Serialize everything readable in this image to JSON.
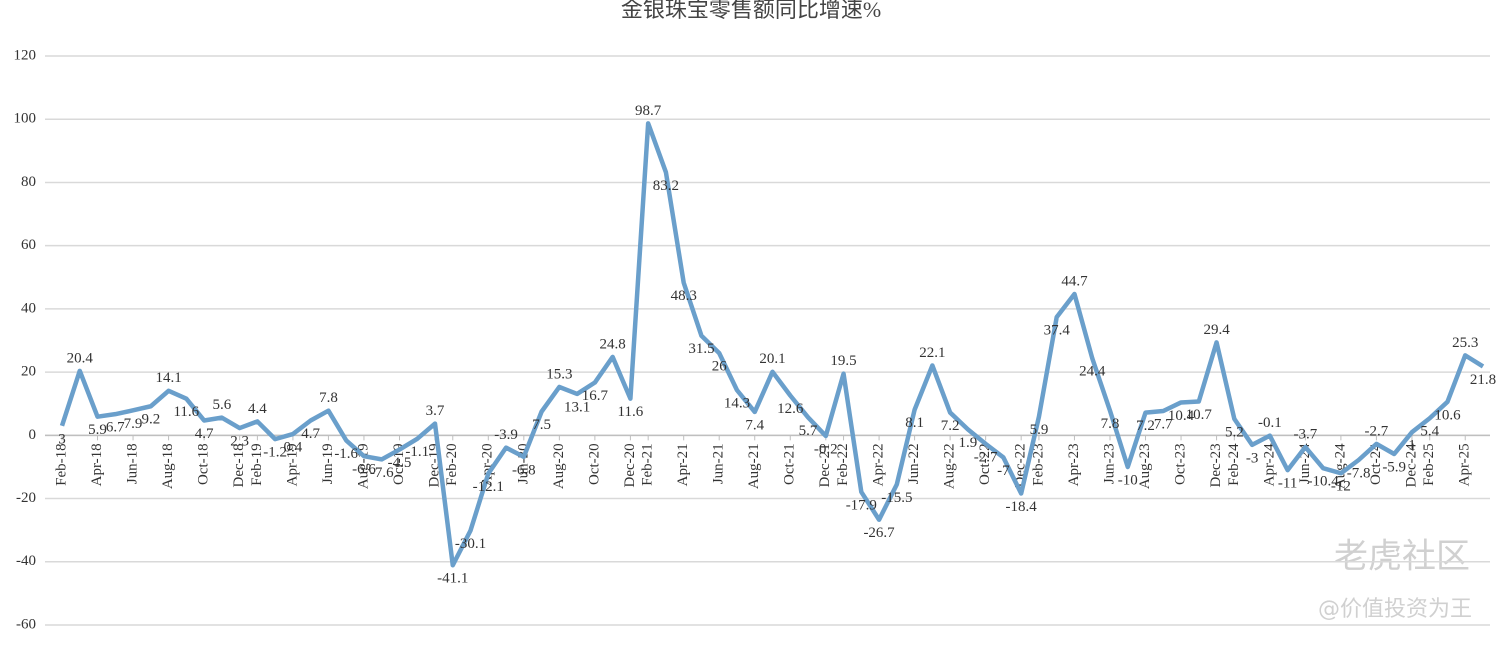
{
  "chart_data": {
    "type": "line",
    "title": "金银珠宝零售额同比增速%",
    "categories": [
      "Feb-18",
      null,
      "Apr-18",
      null,
      "Jun-18",
      null,
      "Aug-18",
      null,
      "Oct-18",
      null,
      "Dec-18",
      "Feb-19",
      null,
      "Apr-19",
      null,
      "Jun-19",
      null,
      "Aug-19",
      null,
      "Oct-19",
      null,
      "Dec-19",
      "Feb-20",
      null,
      "Apr-20",
      null,
      "Jun-20",
      null,
      "Aug-20",
      null,
      "Oct-20",
      null,
      "Dec-20",
      "Feb-21",
      null,
      "Apr-21",
      null,
      "Jun-21",
      null,
      "Aug-21",
      null,
      "Oct-21",
      null,
      "Dec-21",
      "Feb-22",
      null,
      "Apr-22",
      null,
      "Jun-22",
      null,
      "Aug-22",
      null,
      "Oct-22",
      null,
      "Dec-22",
      "Feb-23",
      null,
      "Apr-23",
      null,
      "Jun-23",
      null,
      "Aug-23",
      null,
      "Oct-23",
      null,
      "Dec-23",
      "Feb-24",
      null,
      "Apr-24",
      null,
      "Jun-24",
      null,
      "Aug-24",
      null,
      "Oct-24",
      null,
      "Dec-24",
      "Feb-25",
      null,
      "Apr-25",
      null
    ],
    "series": [
      {
        "name": "金银珠宝零售额同比增速%",
        "color": "#6a9fcb",
        "values": [
          3,
          20.4,
          5.9,
          6.7,
          7.9,
          9.2,
          14.1,
          11.6,
          4.7,
          5.6,
          2.3,
          4.4,
          -1.2,
          0.4,
          4.7,
          7.8,
          -1.6,
          -6.6,
          -7.6,
          -4.5,
          -1.1,
          3.7,
          -41.1,
          -30.1,
          -12.1,
          -3.9,
          -6.8,
          7.5,
          15.3,
          13.1,
          16.7,
          24.8,
          11.6,
          98.7,
          83.2,
          48.3,
          31.5,
          26,
          14.3,
          7.4,
          20.1,
          12.6,
          5.7,
          -0.2,
          19.5,
          -17.9,
          -26.7,
          -15.5,
          8.1,
          22.1,
          7.2,
          1.9,
          -2.7,
          -7,
          -18.4,
          5.9,
          37.4,
          44.7,
          24.4,
          7.8,
          -10,
          7.2,
          7.7,
          10.4,
          10.7,
          29.4,
          5.2,
          -3,
          -0.1,
          -11,
          -3.7,
          -10.4,
          -12,
          -7.8,
          -2.7,
          -5.9,
          1,
          5.4,
          10.6,
          25.3,
          21.8
        ]
      }
    ],
    "ylim": [
      -60,
      120
    ],
    "yticks": [
      -60,
      -40,
      -20,
      0,
      20,
      40,
      60,
      80,
      100,
      120
    ],
    "grid": true,
    "watermark": [
      "老虎社区",
      "@价值投资为王"
    ]
  }
}
